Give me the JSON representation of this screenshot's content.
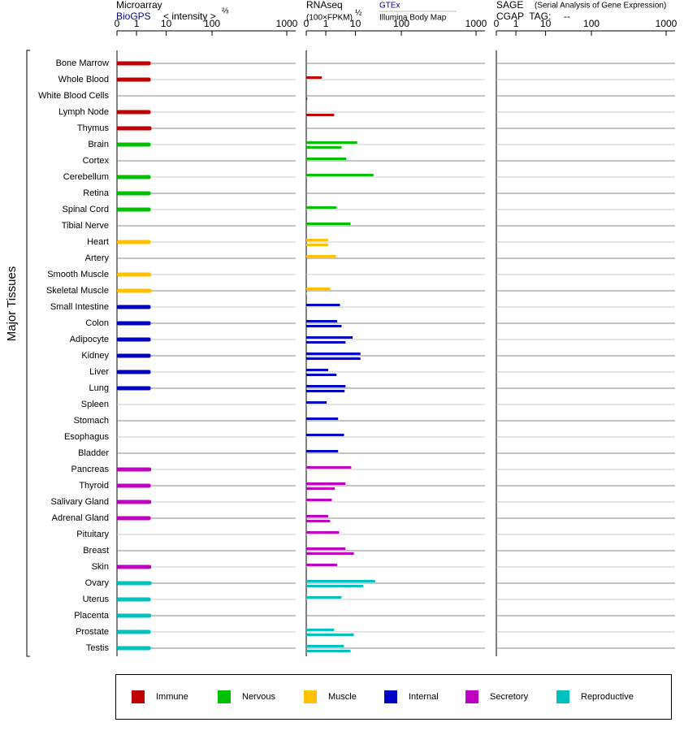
{
  "chart_data": [
    {
      "type": "bar",
      "title": "Microarray",
      "source": "BioGPS",
      "axis_label": "< intensity >",
      "axis_exponent": "⅔",
      "y_label": "Major Tissues",
      "categories": [
        "Bone Marrow",
        "Whole Blood",
        "White Blood Cells",
        "Lymph Node",
        "Thymus",
        "Brain",
        "Cortex",
        "Cerebellum",
        "Retina",
        "Spinal Cord",
        "Tibial Nerve",
        "Heart",
        "Artery",
        "Smooth Muscle",
        "Skeletal Muscle",
        "Small Intestine",
        "Colon",
        "Adipocyte",
        "Kidney",
        "Liver",
        "Lung",
        "Spleen",
        "Stomach",
        "Esophagus",
        "Bladder",
        "Pancreas",
        "Thyroid",
        "Salivary Gland",
        "Adrenal Gland",
        "Pituitary",
        "Breast",
        "Skin",
        "Ovary",
        "Uterus",
        "Placenta",
        "Prostate",
        "Testis"
      ],
      "category_groups": [
        0,
        0,
        0,
        0,
        0,
        1,
        1,
        1,
        1,
        1,
        1,
        2,
        2,
        2,
        2,
        3,
        3,
        3,
        3,
        3,
        3,
        3,
        3,
        3,
        3,
        4,
        4,
        4,
        4,
        4,
        4,
        4,
        5,
        5,
        5,
        5,
        5
      ],
      "groups": [
        {
          "name": "Immune",
          "color": "#c00000"
        },
        {
          "name": "Nervous",
          "color": "#00c000"
        },
        {
          "name": "Muscle",
          "color": "#ffc000"
        },
        {
          "name": "Internal",
          "color": "#0000c0"
        },
        {
          "name": "Secretory",
          "color": "#c000c0"
        },
        {
          "name": "Reproductive",
          "color": "#00c0c0"
        }
      ],
      "values": [
        3,
        3,
        null,
        3,
        3.2,
        3,
        null,
        3,
        3,
        3,
        null,
        3,
        null,
        3.1,
        3.2,
        3,
        3,
        3,
        3,
        3,
        3,
        null,
        null,
        null,
        null,
        3.1,
        3,
        3.1,
        3,
        null,
        null,
        3.1,
        3.2,
        3,
        3.1,
        3,
        3
      ],
      "xlim": [
        0,
        1000
      ],
      "xticks": [
        0,
        1,
        10,
        100,
        1000
      ]
    },
    {
      "type": "bar",
      "title": "RNAseq",
      "axis_label": "(100×FPKM)",
      "axis_exponent": "½",
      "series": [
        {
          "name": "GTEx",
          "values": [
            null,
            0.8,
            null,
            null,
            null,
            10.9,
            4.9,
            24.7,
            null,
            2.3,
            6.8,
            1.2,
            2.2,
            null,
            1.4,
            3.0,
            2.4,
            8.0,
            12.8,
            1.2,
            4.6,
            1.07,
            2.6,
            4.1,
            2.6,
            7.2,
            4.6,
            1.6,
            1.2,
            2.8,
            4.6,
            2.4,
            26.8,
            3.4,
            null,
            1.9,
            4.1
          ]
        },
        {
          "name": "Illumina Body Map",
          "values": [
            null,
            null,
            0.05,
            1.9,
            null,
            3.4,
            null,
            null,
            null,
            null,
            null,
            1.2,
            null,
            null,
            0.05,
            null,
            3.4,
            4.6,
            12.8,
            2.3,
            4.3,
            null,
            null,
            null,
            null,
            null,
            2.0,
            null,
            1.4,
            null,
            8.8,
            null,
            14.8,
            null,
            null,
            8.8,
            6.8
          ]
        }
      ],
      "xlim": [
        0,
        1000
      ],
      "xticks": [
        0,
        1,
        10,
        100,
        1000
      ]
    },
    {
      "type": "bar",
      "title": "SAGE",
      "subtitle": "(Serial Analysis of Gene Expression)",
      "tag_label": "CGAP  TAG:",
      "tag_value": "--",
      "xlim": [
        0,
        1000
      ],
      "xticks": [
        0,
        1,
        10,
        100,
        1000
      ]
    }
  ]
}
